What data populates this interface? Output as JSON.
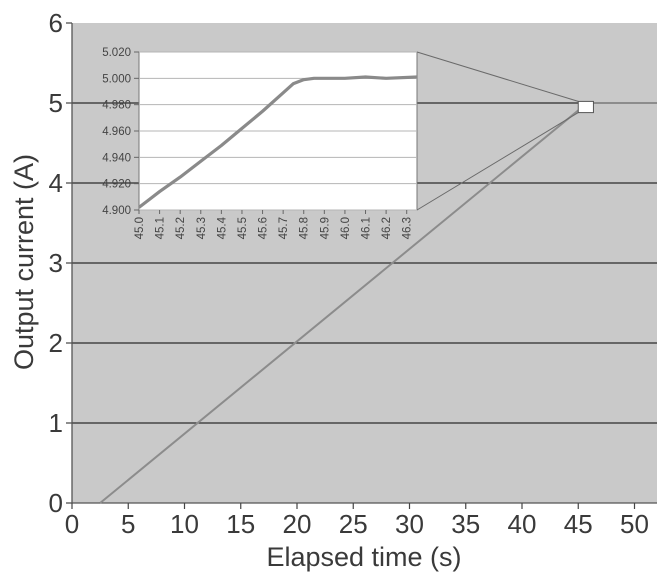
{
  "chart_data": {
    "type": "line",
    "xlabel": "Elapsed time (s)",
    "ylabel": "Output current (A)",
    "xlim": [
      0,
      52
    ],
    "ylim": [
      0,
      6
    ],
    "xticks": [
      "0",
      "5",
      "10",
      "15",
      "20",
      "25",
      "30",
      "35",
      "40",
      "45",
      "50"
    ],
    "yticks": [
      "0",
      "1",
      "2",
      "3",
      "4",
      "5",
      "6"
    ],
    "grid": "horizontal",
    "colors": {
      "background": "#c9c9c9",
      "line": "#8c8c8c",
      "grid": "#2b2b2b",
      "inset_bg": "#ffffff"
    },
    "series": [
      {
        "x": [
          2.5,
          45.8,
          52
        ],
        "y": [
          0,
          5.0,
          5.0
        ]
      }
    ],
    "inset": {
      "type": "line",
      "xlim": [
        45.0,
        46.35
      ],
      "ylim": [
        4.9,
        5.02
      ],
      "xticks": [
        "45.0",
        "45.1",
        "45.2",
        "45.3",
        "45.4",
        "45.5",
        "45.6",
        "45.7",
        "45.8",
        "45.9",
        "46.0",
        "46.1",
        "46.2",
        "46.3"
      ],
      "yticks": [
        "4.900",
        "4.920",
        "4.940",
        "4.960",
        "4.980",
        "5.000",
        "5.020"
      ],
      "series": [
        {
          "x": [
            45.0,
            45.05,
            45.1,
            45.2,
            45.3,
            45.4,
            45.5,
            45.6,
            45.7,
            45.75,
            45.8,
            45.85,
            45.9,
            46.0,
            46.1,
            46.2,
            46.35
          ],
          "y": [
            4.902,
            4.908,
            4.914,
            4.925,
            4.937,
            4.949,
            4.962,
            4.975,
            4.989,
            4.996,
            4.999,
            5.0,
            5.0,
            5.0,
            5.001,
            5.0,
            5.001
          ]
        }
      ]
    }
  }
}
